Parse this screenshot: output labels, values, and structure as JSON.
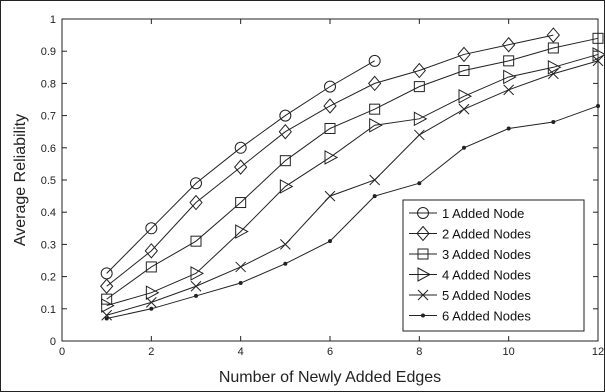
{
  "chart_data": {
    "type": "line",
    "xlabel": "Number of Newly Added Edges",
    "ylabel": "Average Reliability",
    "xlim": [
      0,
      12
    ],
    "ylim": [
      0,
      1
    ],
    "x_ticks": [
      "0",
      "2",
      "4",
      "6",
      "8",
      "10",
      "12"
    ],
    "y_ticks": [
      "0",
      "0.1",
      "0.2",
      "0.3",
      "0.4",
      "0.5",
      "0.6",
      "0.7",
      "0.8",
      "0.9",
      "1"
    ],
    "grid": false,
    "legend_position": "bottom-right",
    "series": [
      {
        "name": "1 Added Node",
        "marker": "circle",
        "x": [
          1,
          2,
          3,
          4,
          5,
          6,
          7
        ],
        "y": [
          0.21,
          0.35,
          0.49,
          0.6,
          0.7,
          0.79,
          0.87
        ]
      },
      {
        "name": "2 Added Nodes",
        "marker": "diamond",
        "x": [
          1,
          2,
          3,
          4,
          5,
          6,
          7,
          8,
          9,
          10,
          11
        ],
        "y": [
          0.17,
          0.28,
          0.43,
          0.54,
          0.65,
          0.73,
          0.8,
          0.84,
          0.89,
          0.92,
          0.95
        ]
      },
      {
        "name": "3 Added Nodes",
        "marker": "square",
        "x": [
          1,
          2,
          3,
          4,
          5,
          6,
          7,
          8,
          9,
          10,
          11,
          12
        ],
        "y": [
          0.13,
          0.23,
          0.31,
          0.43,
          0.56,
          0.66,
          0.72,
          0.79,
          0.84,
          0.87,
          0.91,
          0.94
        ]
      },
      {
        "name": "4 Added Nodes",
        "marker": "triangle-right",
        "x": [
          1,
          2,
          3,
          4,
          5,
          6,
          7,
          8,
          9,
          10,
          11,
          12
        ],
        "y": [
          0.11,
          0.15,
          0.21,
          0.34,
          0.48,
          0.57,
          0.67,
          0.69,
          0.76,
          0.82,
          0.85,
          0.89
        ]
      },
      {
        "name": "5 Added Nodes",
        "marker": "x",
        "x": [
          1,
          2,
          3,
          4,
          5,
          6,
          7,
          8,
          9,
          10,
          11,
          12
        ],
        "y": [
          0.08,
          0.12,
          0.17,
          0.23,
          0.3,
          0.45,
          0.5,
          0.64,
          0.72,
          0.78,
          0.83,
          0.87
        ]
      },
      {
        "name": "6 Added Nodes",
        "marker": "dot",
        "x": [
          1,
          2,
          3,
          4,
          5,
          6,
          7,
          8,
          9,
          10,
          11,
          12
        ],
        "y": [
          0.07,
          0.1,
          0.14,
          0.18,
          0.24,
          0.31,
          0.45,
          0.49,
          0.6,
          0.66,
          0.68,
          0.73
        ]
      }
    ]
  }
}
